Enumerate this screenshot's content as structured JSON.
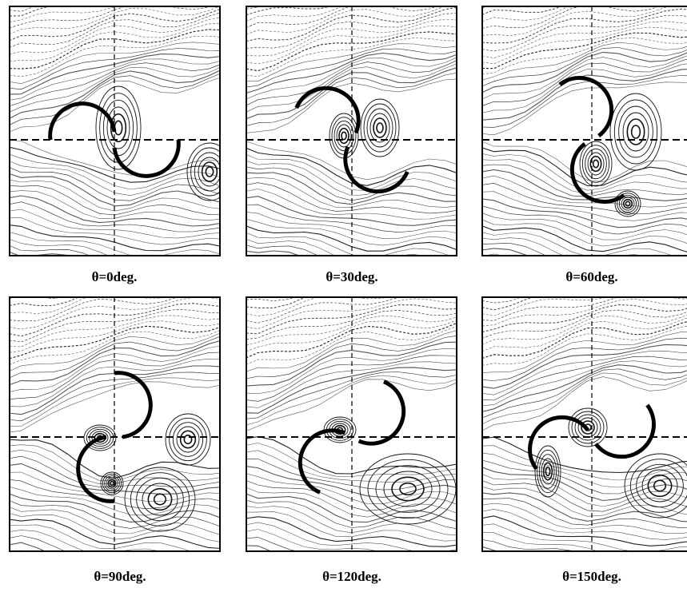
{
  "panels": [
    {
      "caption": "θ=0deg."
    },
    {
      "caption": "θ=30deg."
    },
    {
      "caption": "θ=60deg."
    },
    {
      "caption": "θ=90deg."
    },
    {
      "caption": "θ=120deg."
    },
    {
      "caption": "θ=150deg."
    }
  ]
}
